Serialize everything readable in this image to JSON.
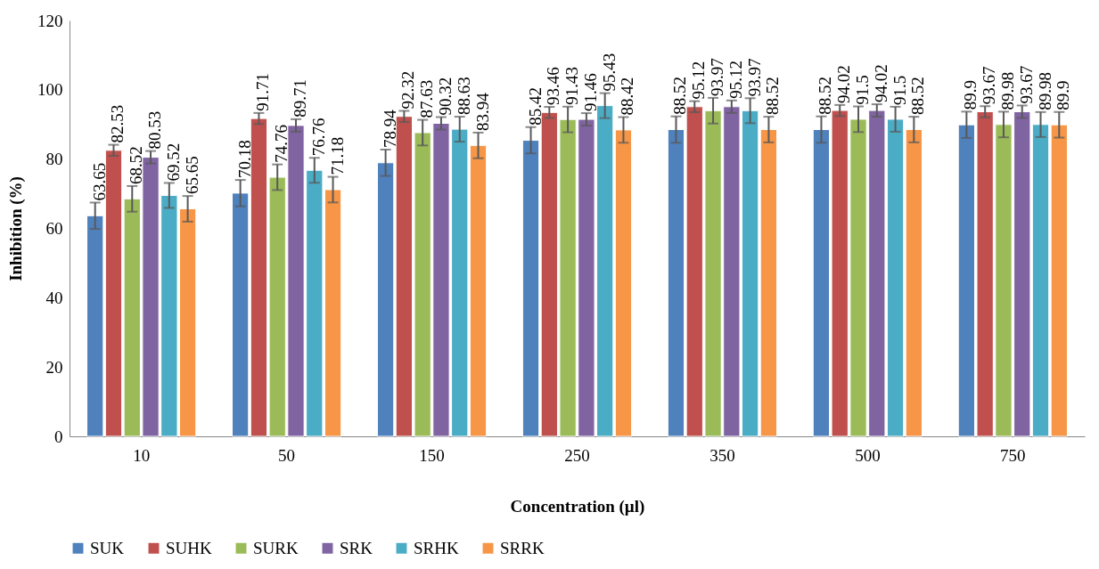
{
  "chart_data": {
    "type": "bar",
    "xlabel": "Concentration (µl)",
    "ylabel": "Inhibition (%)",
    "categories": [
      "10",
      "50",
      "150",
      "250",
      "350",
      "500",
      "750"
    ],
    "ylim": [
      0,
      120
    ],
    "yticks": [
      0,
      20,
      40,
      60,
      80,
      100,
      120
    ],
    "grid": false,
    "legend": "bottom",
    "data_labels": true,
    "series": [
      {
        "name": "SUK",
        "color": "#4f81bd",
        "values": [
          63.65,
          70.18,
          78.94,
          85.42,
          88.52,
          88.52,
          89.9
        ],
        "errors": [
          3.8,
          3.8,
          3.8,
          3.8,
          3.8,
          3.8,
          3.8
        ]
      },
      {
        "name": "SUHK",
        "color": "#c0504d",
        "values": [
          82.53,
          91.71,
          92.32,
          93.46,
          95.12,
          94.02,
          93.67
        ],
        "errors": [
          1.6,
          1.6,
          1.6,
          1.6,
          1.6,
          1.6,
          1.6
        ]
      },
      {
        "name": "SURK",
        "color": "#9bbb59",
        "values": [
          68.52,
          74.76,
          87.63,
          91.43,
          93.97,
          91.5,
          89.98
        ],
        "errors": [
          3.7,
          3.7,
          3.7,
          3.7,
          3.7,
          3.7,
          3.7
        ]
      },
      {
        "name": "SRK",
        "color": "#8064a2",
        "values": [
          80.53,
          89.71,
          90.32,
          91.46,
          95.12,
          94.02,
          93.67
        ],
        "errors": [
          1.8,
          1.8,
          1.8,
          1.8,
          1.8,
          1.8,
          1.8
        ]
      },
      {
        "name": "SRHK",
        "color": "#4bacc6",
        "values": [
          69.52,
          76.76,
          88.63,
          95.43,
          93.97,
          91.5,
          89.98
        ],
        "errors": [
          3.6,
          3.6,
          3.6,
          3.6,
          3.6,
          3.6,
          3.6
        ]
      },
      {
        "name": "SRRK",
        "color": "#f79646",
        "values": [
          65.65,
          71.18,
          83.94,
          88.42,
          88.52,
          88.52,
          89.9
        ],
        "errors": [
          3.7,
          3.7,
          3.7,
          3.7,
          3.7,
          3.7,
          3.7
        ]
      }
    ]
  }
}
